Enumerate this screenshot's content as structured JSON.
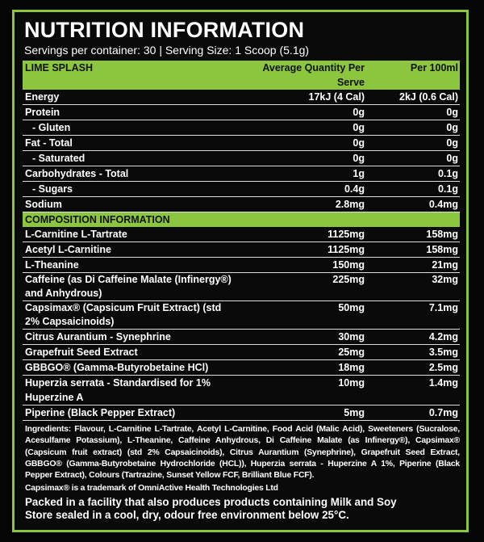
{
  "title": "NUTRITION INFORMATION",
  "serving": "Servings per container: 30 | Serving Size: 1 Scoop (5.1g)",
  "accent_color": "#8cc63f",
  "header": {
    "flavour": "LIME SPLASH",
    "per_serve": "Average Quantity Per Serve",
    "per_100": "Per 100ml"
  },
  "nutrition": [
    {
      "name": "Energy",
      "serve": "17kJ (4 Cal)",
      "per100": "2kJ (0.6 Cal)"
    },
    {
      "name": "Protein",
      "serve": "0g",
      "per100": "0g"
    },
    {
      "name": "- Gluten",
      "serve": "0g",
      "per100": "0g"
    },
    {
      "name": "Fat - Total",
      "serve": "0g",
      "per100": "0g"
    },
    {
      "name": "- Saturated",
      "serve": "0g",
      "per100": "0g"
    },
    {
      "name": "Carbohydrates - Total",
      "serve": "1g",
      "per100": "0.1g"
    },
    {
      "name": "- Sugars",
      "serve": "0.4g",
      "per100": "0.1g"
    },
    {
      "name": "Sodium",
      "serve": "2.8mg",
      "per100": "0.4mg"
    }
  ],
  "composition_header": "COMPOSITION INFORMATION",
  "composition": [
    {
      "name": "L-Carnitine L-Tartrate",
      "serve": "1125mg",
      "per100": "158mg"
    },
    {
      "name": "Acetyl L-Carnitine",
      "serve": "1125mg",
      "per100": "158mg"
    },
    {
      "name": "L-Theanine",
      "serve": "150mg",
      "per100": "21mg"
    },
    {
      "name": "Caffeine (as Di Caffeine Malate (Infinergy®) and Anhydrous)",
      "serve": "225mg",
      "per100": "32mg"
    },
    {
      "name": "Capsimax® (Capsicum Fruit Extract) (std 2% Capsaicinoids)",
      "serve": "50mg",
      "per100": "7.1mg"
    },
    {
      "name": "Citrus Aurantium - Synephrine",
      "serve": "30mg",
      "per100": "4.2mg"
    },
    {
      "name": "Grapefruit Seed Extract",
      "serve": "25mg",
      "per100": "3.5mg"
    },
    {
      "name": "GBBGO® (Gamma-Butyrobetaine HCl)",
      "serve": "18mg",
      "per100": "2.5mg"
    },
    {
      "name": "Huperzia serrata - Standardised for 1% Huperzine A",
      "serve": "10mg",
      "per100": "1.4mg"
    },
    {
      "name": "Piperine (Black Pepper Extract)",
      "serve": "5mg",
      "per100": "0.7mg"
    }
  ],
  "ingredients": "Ingredients: Flavour, L-Carnitine L-Tartrate, Acetyl L-Carnitine, Food Acid (Malic Acid), Sweeteners (Sucralose, Acesulfame Potassium), L-Theanine, Caffeine Anhydrous, Di Caffeine Malate (as Infinergy®), Capsimax® (Capsicum fruit extract) (std 2% Capsaicinoids), Citrus Aurantium (Synephrine), Grapefruit Seed Extract, GBBGO® (Gamma-Butyrobetaine Hydrochloride (HCL)), Huperzia serrata - Huperzine A 1%, Piperine (Black Pepper Extract), Colours (Tartrazine, Sunset Yellow FCF, Brilliant Blue FCF).",
  "trademark": "Capsimax® is a trademark of OmniActive Health Technologies Ltd",
  "warnings": [
    "Packed in a facility that also produces products containing Milk and Soy",
    "Store sealed in a cool, dry, odour free environment below 25°C."
  ]
}
